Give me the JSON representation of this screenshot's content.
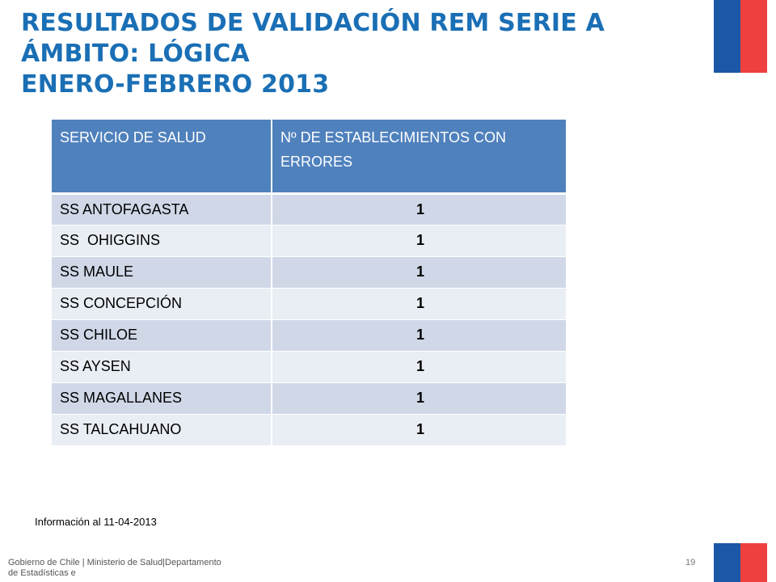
{
  "title": {
    "line1": "RESULTADOS DE VALIDACIÓN REM SERIE A",
    "line2": "ÁMBITO: LÓGICA",
    "line3": "ENERO-FEBRERO 2013"
  },
  "table": {
    "headers": [
      "SERVICIO DE SALUD",
      "Nº DE ESTABLECIMIENTOS CON ERRORES"
    ],
    "rows": [
      [
        "SS ANTOFAGASTA",
        "1"
      ],
      [
        "SS  OHIGGINS",
        "1"
      ],
      [
        "SS MAULE",
        "1"
      ],
      [
        "SS CONCEPCIÓN",
        "1"
      ],
      [
        "SS CHILOE",
        "1"
      ],
      [
        "SS AYSEN",
        "1"
      ],
      [
        "SS MAGALLANES",
        "1"
      ],
      [
        "SS TALCAHUANO",
        "1"
      ]
    ]
  },
  "info": "Información al 11-04-2013",
  "footer": {
    "text": "Gobierno de Chile | Ministerio de Salud|Departamento de Estadísticas e",
    "page_number": "19"
  },
  "colors": {
    "title": "#1a6fb5",
    "header_bg": "#4f81bd",
    "row_odd": "#d0d8e8",
    "row_even": "#e9edf4",
    "flag_blue": "#1b57a6",
    "flag_red": "#ef4040"
  }
}
